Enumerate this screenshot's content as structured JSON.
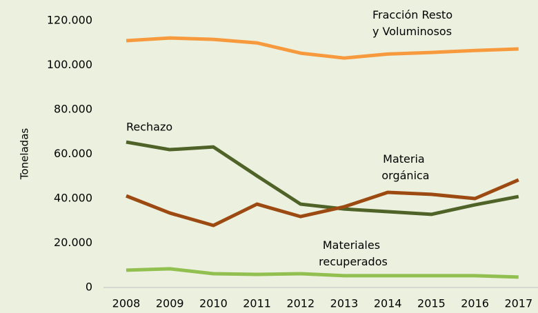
{
  "chart_data": {
    "type": "line",
    "y_label": "Toneladas",
    "categories": [
      "2008",
      "2009",
      "2010",
      "2011",
      "2012",
      "2013",
      "2014",
      "2015",
      "2016",
      "2017"
    ],
    "series": [
      {
        "name": "Fracción Resto y Voluminosos",
        "color": "#f79a3e",
        "values": [
          111000,
          112200,
          111600,
          110000,
          105400,
          103200,
          105000,
          105700,
          106600,
          107300
        ]
      },
      {
        "name": "Rechazo",
        "color": "#4f6228",
        "values": [
          65400,
          62000,
          63200,
          50200,
          37500,
          35300,
          34100,
          32900,
          37200,
          40900
        ]
      },
      {
        "name": "Materia orgánica",
        "color": "#9c4a12",
        "values": [
          41200,
          33500,
          27900,
          37500,
          31900,
          36300,
          42800,
          41900,
          40000,
          48400
        ]
      },
      {
        "name": "Materiales recuperados",
        "color": "#92c050",
        "values": [
          7800,
          8400,
          6200,
          5900,
          6200,
          5300,
          5300,
          5300,
          5300,
          4700
        ]
      }
    ],
    "ylim": [
      0,
      120000
    ],
    "yticks": [
      0,
      {
        "value": 20000,
        "label": "20.000"
      },
      {
        "value": 40000,
        "label": "40.000"
      },
      {
        "value": 60000,
        "label": "60.000"
      },
      {
        "value": 80000,
        "label": "80.000"
      },
      {
        "value": 100000,
        "label": "100.000"
      },
      {
        "value": 120000,
        "label": "120.000"
      }
    ]
  }
}
